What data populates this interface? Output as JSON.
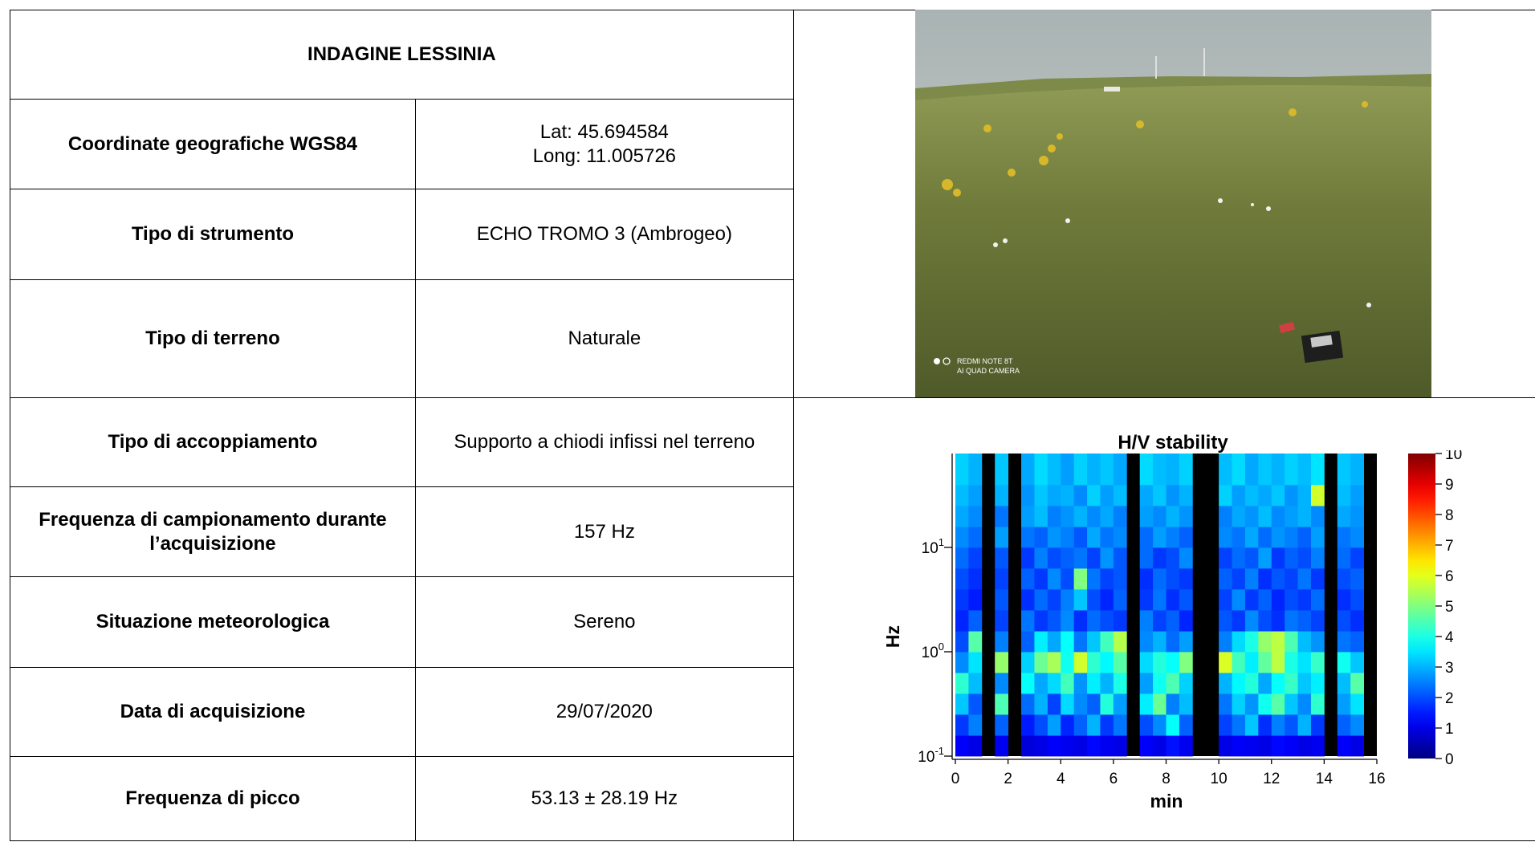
{
  "table": {
    "title": "INDAGINE LESSINIA",
    "rows": [
      {
        "label": "Coordinate geografiche WGS84",
        "value": [
          "Lat: 45.694584",
          "Long: 11.005726"
        ]
      },
      {
        "label": "Tipo di strumento",
        "value": "ECHO TROMO 3 (Ambrogeo)"
      },
      {
        "label": "Tipo di terreno",
        "value": "Naturale"
      },
      {
        "label": "Tipo di accoppiamento",
        "value": "Supporto a chiodi infissi nel terreno"
      },
      {
        "label": "Frequenza di campionamento durante l’acquisizione",
        "value": "157 Hz"
      },
      {
        "label": "Situazione meteorologica",
        "value": "Sereno"
      },
      {
        "label": "Data di acquisizione",
        "value": "29/07/2020"
      },
      {
        "label": "Frequenza di picco",
        "value": "53.13 ± 28.19 Hz"
      }
    ]
  },
  "photo": {
    "watermark": [
      "REDMI NOTE 8T",
      "AI QUAD CAMERA"
    ]
  },
  "chart_data": {
    "type": "heatmap",
    "title": "H/V stability",
    "xlabel": "min",
    "ylabel": "Hz",
    "xlim": [
      0,
      16
    ],
    "xticks": [
      0,
      2,
      4,
      6,
      8,
      10,
      12,
      14,
      16
    ],
    "ylim": [
      0.1,
      79.4
    ],
    "ylog": true,
    "yticks": [
      {
        "value": 0.1,
        "label": "10",
        "exponent": "-1"
      },
      {
        "value": 1,
        "label": "10",
        "exponent": "0"
      },
      {
        "value": 10,
        "label": "10",
        "exponent": "1"
      }
    ],
    "colormap": "jet",
    "null_color": "#000000",
    "colorbar": {
      "lim": [
        0,
        10
      ],
      "ticks": [
        0,
        1,
        2,
        3,
        4,
        5,
        6,
        7,
        8,
        9,
        10
      ]
    },
    "xbins": [
      0,
      0.5,
      1,
      1.5,
      2,
      2.5,
      3,
      3.5,
      4,
      4.5,
      5,
      5.5,
      6,
      6.5,
      7,
      7.5,
      8,
      8.5,
      9,
      9.5,
      10,
      10.5,
      11,
      11.5,
      12,
      12.5,
      13,
      13.5,
      14,
      14.5,
      15,
      15.5,
      16
    ],
    "ybins": [
      0.1,
      0.158,
      0.251,
      0.398,
      0.631,
      1,
      1.58,
      2.51,
      3.98,
      6.31,
      10,
      15.8,
      25.1,
      39.8,
      79.4
    ],
    "values": [
      [
        1.2,
        1.0,
        null,
        1.1,
        null,
        0.9,
        1.0,
        1.2,
        1.1,
        1.0,
        1.3,
        1.1,
        1.0,
        null,
        1.2,
        1.0,
        1.4,
        1.1,
        null,
        null,
        1.0,
        1.2,
        1.1,
        1.0,
        1.3,
        1.2,
        1.0,
        1.1,
        null,
        1.2,
        1.0,
        null
      ],
      [
        1.8,
        2.5,
        null,
        2.2,
        null,
        1.5,
        2.0,
        2.8,
        1.6,
        2.2,
        3.0,
        1.8,
        2.4,
        null,
        2.0,
        2.6,
        3.8,
        2.2,
        null,
        null,
        1.9,
        2.4,
        3.2,
        1.7,
        2.5,
        2.1,
        3.0,
        1.8,
        null,
        2.2,
        2.6,
        null
      ],
      [
        3.2,
        2.1,
        null,
        4.5,
        null,
        2.3,
        3.0,
        1.9,
        3.4,
        2.6,
        2.2,
        4.1,
        2.8,
        null,
        3.6,
        4.8,
        2.5,
        3.1,
        null,
        null,
        2.4,
        3.3,
        2.7,
        3.9,
        4.6,
        3.2,
        2.6,
        4.2,
        null,
        2.8,
        3.5,
        null
      ],
      [
        4.2,
        3.1,
        null,
        2.6,
        null,
        3.8,
        2.9,
        3.4,
        4.4,
        2.7,
        3.6,
        3.0,
        4.0,
        null,
        2.8,
        3.9,
        4.5,
        3.3,
        null,
        null,
        3.0,
        3.7,
        4.1,
        2.9,
        3.8,
        4.3,
        3.2,
        3.6,
        null,
        3.1,
        4.6,
        null
      ],
      [
        2.6,
        3.5,
        null,
        5.2,
        null,
        3.3,
        4.8,
        5.4,
        3.9,
        5.8,
        4.2,
        3.7,
        4.6,
        null,
        3.4,
        4.1,
        3.8,
        5.0,
        null,
        null,
        5.9,
        4.4,
        3.6,
        4.7,
        5.6,
        4.0,
        3.5,
        4.3,
        null,
        3.9,
        3.2,
        null
      ],
      [
        2.0,
        4.6,
        null,
        2.5,
        null,
        2.2,
        3.6,
        2.9,
        3.8,
        2.4,
        3.2,
        4.4,
        5.5,
        null,
        2.6,
        3.0,
        2.3,
        2.8,
        null,
        null,
        2.5,
        3.4,
        4.0,
        5.2,
        5.6,
        4.5,
        3.1,
        2.7,
        null,
        2.4,
        2.2,
        null
      ],
      [
        1.6,
        2.2,
        null,
        1.9,
        null,
        2.4,
        1.8,
        2.1,
        2.6,
        1.7,
        2.3,
        2.0,
        1.8,
        null,
        2.5,
        1.9,
        2.2,
        1.6,
        null,
        null,
        2.1,
        1.8,
        2.6,
        2.0,
        1.7,
        2.4,
        2.2,
        1.9,
        null,
        2.0,
        1.7,
        null
      ],
      [
        1.8,
        1.5,
        null,
        2.1,
        null,
        1.7,
        2.3,
        1.9,
        2.5,
        3.2,
        2.0,
        1.6,
        2.2,
        null,
        1.8,
        2.4,
        1.7,
        2.1,
        null,
        null,
        1.9,
        2.6,
        1.8,
        2.2,
        1.6,
        2.0,
        1.8,
        2.3,
        null,
        1.7,
        2.0,
        null
      ],
      [
        2.0,
        1.7,
        null,
        1.9,
        null,
        2.2,
        1.8,
        2.6,
        2.0,
        5.0,
        2.4,
        1.9,
        2.1,
        null,
        1.7,
        2.3,
        2.0,
        1.8,
        null,
        null,
        2.2,
        1.9,
        2.5,
        1.7,
        2.1,
        1.9,
        2.4,
        1.8,
        null,
        2.0,
        2.2,
        null
      ],
      [
        2.3,
        1.9,
        null,
        2.1,
        null,
        1.8,
        2.5,
        2.0,
        2.2,
        2.4,
        1.9,
        2.7,
        2.1,
        null,
        2.3,
        1.8,
        2.0,
        2.6,
        null,
        null,
        1.9,
        2.3,
        2.1,
        2.8,
        1.8,
        2.2,
        2.0,
        2.5,
        null,
        2.3,
        1.9,
        null
      ],
      [
        2.6,
        2.3,
        null,
        2.8,
        null,
        2.4,
        2.2,
        2.7,
        2.5,
        2.1,
        2.9,
        2.4,
        2.6,
        null,
        2.3,
        2.8,
        2.5,
        2.2,
        null,
        null,
        2.6,
        2.4,
        2.9,
        2.3,
        2.7,
        2.5,
        2.2,
        2.8,
        null,
        2.4,
        2.6,
        null
      ],
      [
        2.9,
        2.6,
        null,
        2.4,
        null,
        2.8,
        3.1,
        2.5,
        2.7,
        3.0,
        2.6,
        2.9,
        2.5,
        null,
        2.8,
        2.6,
        3.0,
        2.7,
        null,
        null,
        2.5,
        2.9,
        2.7,
        3.1,
        2.6,
        2.8,
        3.0,
        2.6,
        null,
        2.9,
        2.7,
        null
      ],
      [
        3.1,
        2.8,
        null,
        3.0,
        null,
        2.7,
        3.2,
        2.9,
        3.0,
        2.6,
        3.3,
        2.8,
        3.1,
        null,
        2.9,
        3.2,
        2.7,
        3.0,
        null,
        null,
        3.3,
        2.8,
        3.1,
        2.9,
        3.2,
        2.7,
        3.0,
        5.8,
        null,
        3.1,
        2.8,
        null
      ],
      [
        3.3,
        3.0,
        null,
        3.2,
        null,
        2.9,
        3.4,
        3.1,
        2.8,
        3.3,
        3.0,
        3.2,
        2.9,
        null,
        3.4,
        3.1,
        3.0,
        3.3,
        null,
        null,
        3.1,
        3.4,
        2.9,
        3.2,
        3.0,
        3.3,
        3.1,
        3.5,
        null,
        3.2,
        3.0,
        null
      ]
    ]
  }
}
